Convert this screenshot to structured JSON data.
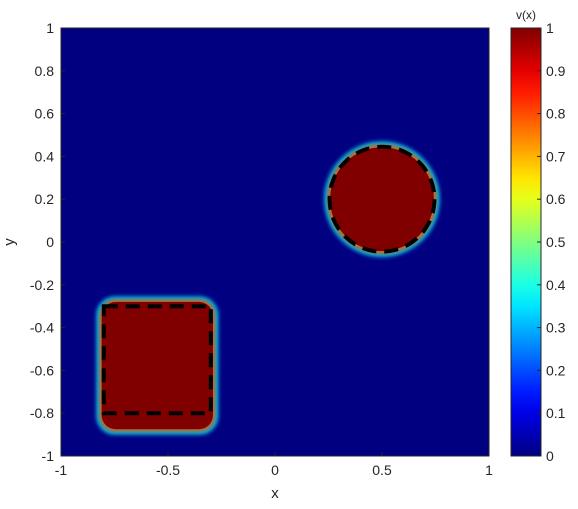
{
  "chart_data": {
    "type": "heatmap",
    "title": "",
    "xlabel": "x",
    "ylabel": "y",
    "xlim": [
      -1,
      1
    ],
    "ylim": [
      -1,
      1
    ],
    "xticks": [
      "-1",
      "-0.5",
      "0",
      "0.5",
      "1"
    ],
    "yticks": [
      "-1",
      "-0.8",
      "-0.6",
      "-0.4",
      "-0.2",
      "0",
      "0.2",
      "0.4",
      "0.6",
      "0.8",
      "1"
    ],
    "background_value": 0,
    "regions": [
      {
        "shape": "circle",
        "center": [
          0.5,
          0.2
        ],
        "radius": 0.245,
        "value": 1
      },
      {
        "shape": "rounded-rectangle",
        "x_range": [
          -0.81,
          -0.29
        ],
        "y_range": [
          -0.875,
          -0.28
        ],
        "value": 1
      }
    ],
    "reference_outlines": [
      {
        "shape": "circle",
        "center": [
          0.5,
          0.2
        ],
        "radius": 0.245,
        "style": "dashed",
        "color": "#000000"
      },
      {
        "shape": "rectangle",
        "x_range": [
          -0.8,
          -0.3
        ],
        "y_range": [
          -0.8,
          -0.3
        ],
        "style": "dashed",
        "color": "#000000"
      }
    ],
    "colorbar": {
      "label": "v(x)",
      "range": [
        0,
        1
      ],
      "ticks": [
        "0",
        "0.1",
        "0.2",
        "0.3",
        "0.4",
        "0.5",
        "0.6",
        "0.7",
        "0.8",
        "0.9",
        "1"
      ],
      "colormap": "jet"
    },
    "grid": false,
    "legend": "none"
  }
}
